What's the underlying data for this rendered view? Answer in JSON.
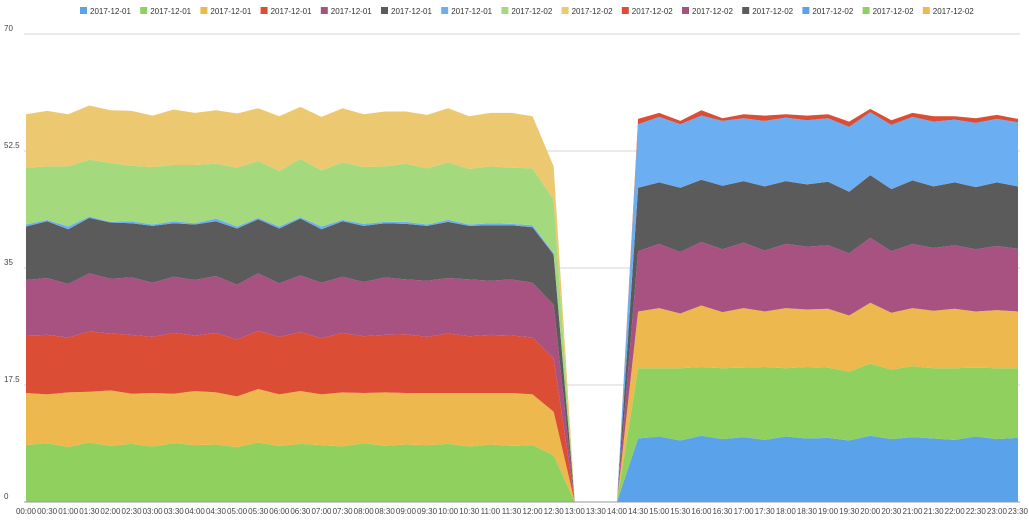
{
  "chart_data": {
    "type": "area",
    "stacked": true,
    "title": "",
    "xlabel": "",
    "ylabel": "",
    "ylim": [
      0,
      70
    ],
    "yticks": [
      "0",
      "17.5",
      "35",
      "52.5",
      "70"
    ],
    "ytick_values": [
      0,
      17.5,
      35,
      52.5,
      70
    ],
    "grid": true,
    "legend_position": "top",
    "x": [
      "00:00",
      "00:30",
      "01:00",
      "01:30",
      "02:00",
      "02:30",
      "03:00",
      "03:30",
      "04:00",
      "04:30",
      "05:00",
      "05:30",
      "06:00",
      "06:30",
      "07:00",
      "07:30",
      "08:00",
      "08:30",
      "09:00",
      "09:30",
      "10:00",
      "10:30",
      "11:00",
      "11:30",
      "12:00",
      "12:30",
      "13:00",
      "13:30",
      "14:00",
      "14:30",
      "15:00",
      "15:30",
      "16:00",
      "16:30",
      "17:00",
      "17:30",
      "18:00",
      "18:30",
      "19:00",
      "19:30",
      "20:00",
      "20:30",
      "21:00",
      "21:30",
      "22:00",
      "22:30",
      "23:00",
      "23:30"
    ],
    "series": [
      {
        "name": "2017-12-01",
        "color": "#5aa2ea",
        "values": [
          0,
          0,
          0,
          0,
          0,
          0,
          0,
          0,
          0,
          0,
          0,
          0,
          0,
          0,
          0,
          0,
          0,
          0,
          0,
          0,
          0,
          0,
          0,
          0,
          0,
          0,
          0,
          0,
          0,
          0,
          0,
          0,
          0,
          0,
          0,
          0,
          0,
          0,
          0,
          0,
          0,
          0,
          0,
          0,
          0,
          0,
          0,
          0
        ]
      },
      {
        "name": "2017-12-01",
        "color": "#8fd05f",
        "values": [
          8.5,
          8.8,
          8.2,
          8.9,
          8.4,
          8.7,
          8.3,
          8.8,
          8.5,
          8.6,
          8.2,
          8.9,
          8.4,
          8.7,
          8.5,
          8.3,
          8.8,
          8.4,
          8.6,
          8.5,
          8.7,
          8.3,
          8.6,
          8.4,
          8.5,
          7.0,
          0,
          0,
          0,
          0,
          0,
          0,
          0,
          0,
          0,
          0,
          0,
          0,
          0,
          0,
          0,
          0,
          0,
          0,
          0,
          0,
          0,
          0
        ]
      },
      {
        "name": "2017-12-01",
        "color": "#edb94f",
        "values": [
          7.8,
          7.3,
          8.2,
          7.6,
          8.3,
          7.5,
          8.0,
          7.4,
          8.1,
          7.8,
          7.6,
          8.0,
          7.7,
          7.9,
          7.6,
          8.1,
          7.5,
          8.0,
          7.7,
          7.8,
          7.6,
          8.0,
          7.7,
          7.9,
          7.6,
          6.5,
          0,
          0,
          0,
          0,
          0,
          0,
          0,
          0,
          0,
          0,
          0,
          0,
          0,
          0,
          0,
          0,
          0,
          0,
          0,
          0,
          0,
          0
        ]
      },
      {
        "name": "2017-12-01",
        "color": "#dc4d35",
        "values": [
          8.6,
          8.9,
          8.2,
          9.0,
          8.5,
          8.8,
          8.4,
          9.1,
          8.3,
          8.9,
          8.5,
          8.7,
          8.6,
          8.8,
          8.4,
          8.9,
          8.5,
          8.6,
          8.8,
          8.4,
          8.9,
          8.5,
          8.7,
          8.6,
          8.5,
          8.0,
          0,
          0,
          0,
          0,
          0,
          0,
          0,
          0,
          0,
          0,
          0,
          0,
          0,
          0,
          0,
          0,
          0,
          0,
          0,
          0,
          0,
          0
        ]
      },
      {
        "name": "2017-12-01",
        "color": "#a85282",
        "values": [
          8.3,
          8.5,
          8.0,
          8.7,
          8.2,
          8.6,
          8.1,
          8.4,
          8.3,
          8.5,
          8.2,
          8.6,
          8.0,
          8.5,
          8.3,
          8.4,
          8.1,
          8.6,
          8.2,
          8.4,
          8.3,
          8.5,
          8.1,
          8.4,
          8.2,
          8.0,
          0,
          0,
          0,
          0,
          0,
          0,
          0,
          0,
          0,
          0,
          0,
          0,
          0,
          0,
          0,
          0,
          0,
          0,
          0,
          0,
          0,
          0
        ]
      },
      {
        "name": "2017-12-01",
        "color": "#5b5b5b",
        "values": [
          8.0,
          8.5,
          8.2,
          8.3,
          8.4,
          8.1,
          8.5,
          8.0,
          8.3,
          8.2,
          8.4,
          8.1,
          8.2,
          8.5,
          8.0,
          8.3,
          8.4,
          8.1,
          8.3,
          8.2,
          8.4,
          8.0,
          8.3,
          8.1,
          8.3,
          7.5,
          0,
          0,
          0,
          0,
          0,
          0,
          0,
          0,
          0,
          0,
          0,
          0,
          0,
          0,
          0,
          0,
          0,
          0,
          0,
          0,
          0,
          0
        ]
      },
      {
        "name": "2017-12-01",
        "color": "#6baef2",
        "values": [
          0.3,
          0.2,
          0.4,
          0.2,
          0.1,
          0.3,
          0.2,
          0.3,
          0.2,
          0.4,
          0.3,
          0.2,
          0.3,
          0.2,
          0.4,
          0.2,
          0.3,
          0.2,
          0.3,
          0.2,
          0.3,
          0.2,
          0.3,
          0.2,
          0.3,
          0.2,
          0,
          0,
          0,
          0,
          0,
          0,
          0,
          0,
          0,
          0,
          0,
          0,
          0,
          0,
          0,
          0,
          0,
          0,
          0,
          0,
          0,
          0
        ]
      },
      {
        "name": "2017-12-02",
        "color": "#a5d97e",
        "values": [
          8.5,
          8.0,
          9.0,
          8.5,
          8.8,
          8.3,
          8.6,
          8.4,
          8.7,
          8.2,
          8.8,
          8.5,
          8.3,
          8.7,
          8.4,
          8.6,
          8.5,
          8.3,
          8.7,
          8.4,
          8.6,
          8.3,
          8.5,
          8.4,
          8.5,
          8.0,
          0,
          0,
          0,
          0,
          0,
          0,
          0,
          0,
          0,
          0,
          0,
          0,
          0,
          0,
          0,
          0,
          0,
          0,
          0,
          0,
          0,
          0
        ]
      },
      {
        "name": "2017-12-02",
        "color": "#ecc870",
        "values": [
          8.0,
          8.3,
          7.8,
          8.1,
          7.9,
          8.2,
          7.7,
          8.3,
          7.8,
          8.0,
          8.1,
          7.9,
          8.2,
          7.8,
          8.0,
          8.1,
          7.9,
          8.2,
          7.8,
          8.0,
          8.1,
          7.9,
          8.0,
          8.2,
          7.8,
          5.0,
          0,
          0,
          0,
          0,
          0,
          0,
          0,
          0,
          0,
          0,
          0,
          0,
          0,
          0,
          0,
          0,
          0,
          0,
          0,
          0,
          0,
          0
        ]
      },
      {
        "name": "2017-12-02",
        "color": "#dc4d35",
        "values": [
          0,
          0,
          0,
          0,
          0,
          0,
          0,
          0,
          0,
          0,
          0,
          0,
          0,
          0,
          0,
          0,
          0,
          0,
          0,
          0,
          0,
          0,
          0,
          0,
          0,
          0,
          0,
          0,
          0,
          0.8,
          0.6,
          0.5,
          0.8,
          0.4,
          0.6,
          0.8,
          0.5,
          0.7,
          0.6,
          0.8,
          0.5,
          0.7,
          0.6,
          0.8,
          0.5,
          0.7,
          0.6,
          0.5
        ]
      },
      {
        "name": "2017-12-02",
        "color": "#a85282",
        "values": [
          0,
          0,
          0,
          0,
          0,
          0,
          0,
          0,
          0,
          0,
          0,
          0,
          0,
          0,
          0,
          0,
          0,
          0,
          0,
          0,
          0,
          0,
          0,
          0,
          0,
          0,
          0,
          0,
          0,
          0,
          0,
          0,
          0,
          0,
          0,
          0,
          0,
          0,
          0,
          0,
          0,
          0,
          0,
          0,
          0,
          0,
          0,
          0
        ]
      },
      {
        "name": "2017-12-02",
        "color": "#5b5b5b",
        "values": [
          0,
          0,
          0,
          0,
          0,
          0,
          0,
          0,
          0,
          0,
          0,
          0,
          0,
          0,
          0,
          0,
          0,
          0,
          0,
          0,
          0,
          0,
          0,
          0,
          0,
          0,
          0,
          0,
          0,
          0,
          0,
          0,
          0,
          0,
          0,
          0,
          0,
          0,
          0,
          0,
          0,
          0,
          0,
          0,
          0,
          0,
          0,
          0
        ]
      },
      {
        "name": "2017-12-02",
        "color": "#5aa2ea",
        "values": [
          0,
          0,
          0,
          0,
          0,
          0,
          0,
          0,
          0,
          0,
          0,
          0,
          0,
          0,
          0,
          0,
          0,
          0,
          0,
          0,
          0,
          0,
          0,
          0,
          0,
          0,
          0,
          0,
          0,
          0,
          0,
          0,
          0,
          0,
          0,
          0,
          0,
          0,
          0,
          0,
          0,
          0,
          0,
          0,
          0,
          0,
          0,
          0
        ]
      },
      {
        "name": "2017-12-02",
        "color": "#8fd05f",
        "values": [
          0,
          0,
          0,
          0,
          0,
          0,
          0,
          0,
          0,
          0,
          0,
          0,
          0,
          0,
          0,
          0,
          0,
          0,
          0,
          0,
          0,
          0,
          0,
          0,
          0,
          0,
          0,
          0,
          0,
          0,
          0,
          0,
          0,
          0,
          0,
          0,
          0,
          0,
          0,
          0,
          0,
          0,
          0,
          0,
          0,
          0,
          0,
          0
        ]
      },
      {
        "name": "2017-12-02",
        "color": "#edb94f",
        "values": [
          0,
          0,
          0,
          0,
          0,
          0,
          0,
          0,
          0,
          0,
          0,
          0,
          0,
          0,
          0,
          0,
          0,
          0,
          0,
          0,
          0,
          0,
          0,
          0,
          0,
          0,
          0,
          0,
          0,
          0,
          0,
          0,
          0,
          0,
          0,
          0,
          0,
          0,
          0,
          0,
          0,
          0,
          0,
          0,
          0,
          0,
          0,
          0
        ]
      }
    ],
    "afternoon_series": [
      {
        "legend_index": 0,
        "values": [
          0,
          0,
          0,
          0,
          0,
          0,
          0,
          0,
          0,
          0,
          0,
          0,
          0,
          0,
          0,
          0,
          0,
          0,
          0,
          0,
          0,
          0,
          0,
          0,
          0,
          0,
          0,
          0,
          0,
          9.5,
          9.8,
          9.2,
          9.9,
          9.4,
          9.7,
          9.3,
          9.8,
          9.5,
          9.6,
          9.2,
          9.9,
          9.4,
          9.7,
          9.5,
          9.3,
          9.8,
          9.4,
          9.6
        ]
      },
      {
        "legend_index": 1,
        "values": [
          0,
          0,
          0,
          0,
          0,
          0,
          0,
          0,
          0,
          0,
          0,
          0,
          0,
          0,
          0,
          0,
          0,
          0,
          0,
          0,
          0,
          0,
          0,
          0,
          0,
          0,
          0,
          0,
          0,
          10.5,
          10.2,
          10.8,
          10.3,
          10.6,
          10.4,
          10.9,
          10.2,
          10.7,
          10.5,
          10.3,
          10.8,
          10.4,
          10.6,
          10.5,
          10.7,
          10.3,
          10.6,
          10.4
        ]
      },
      {
        "legend_index": 2,
        "values": [
          0,
          0,
          0,
          0,
          0,
          0,
          0,
          0,
          0,
          0,
          0,
          0,
          0,
          0,
          0,
          0,
          0,
          0,
          0,
          0,
          0,
          0,
          0,
          0,
          0,
          0,
          0,
          0,
          0,
          8.5,
          9.0,
          8.2,
          9.2,
          8.4,
          8.9,
          8.3,
          9.0,
          8.6,
          8.8,
          8.4,
          9.1,
          8.5,
          8.7,
          8.6,
          8.9,
          8.4,
          8.7,
          8.5
        ]
      },
      {
        "legend_index": 4,
        "values": [
          0,
          0,
          0,
          0,
          0,
          0,
          0,
          0,
          0,
          0,
          0,
          0,
          0,
          0,
          0,
          0,
          0,
          0,
          0,
          0,
          0,
          0,
          0,
          0,
          0,
          0,
          0,
          0,
          0,
          9.0,
          9.6,
          9.2,
          9.5,
          9.4,
          9.8,
          9.1,
          9.6,
          9.4,
          9.5,
          9.3,
          9.7,
          9.2,
          9.6,
          9.4,
          9.5,
          9.3,
          9.6,
          9.4
        ]
      },
      {
        "legend_index": 5,
        "values": [
          0,
          0,
          0,
          0,
          0,
          0,
          0,
          0,
          0,
          0,
          0,
          0,
          0,
          0,
          0,
          0,
          0,
          0,
          0,
          0,
          0,
          0,
          0,
          0,
          0,
          0,
          0,
          0,
          0,
          9.5,
          9.2,
          9.6,
          9.3,
          9.5,
          9.2,
          9.6,
          9.4,
          9.3,
          9.5,
          9.2,
          9.4,
          9.3,
          9.5,
          9.2,
          9.4,
          9.3,
          9.5,
          9.3
        ]
      },
      {
        "legend_index": 6,
        "values": [
          0,
          0,
          0,
          0,
          0,
          0,
          0,
          0,
          0,
          0,
          0,
          0,
          0,
          0,
          0,
          0,
          0,
          0,
          0,
          0,
          0,
          0,
          0,
          0,
          0,
          0,
          0,
          0,
          0,
          9.5,
          9.8,
          9.5,
          9.6,
          9.7,
          9.4,
          9.8,
          9.5,
          9.6,
          9.5,
          9.7,
          9.4,
          9.6,
          9.5,
          9.7,
          9.4,
          9.6,
          9.5,
          9.6
        ]
      }
    ]
  }
}
